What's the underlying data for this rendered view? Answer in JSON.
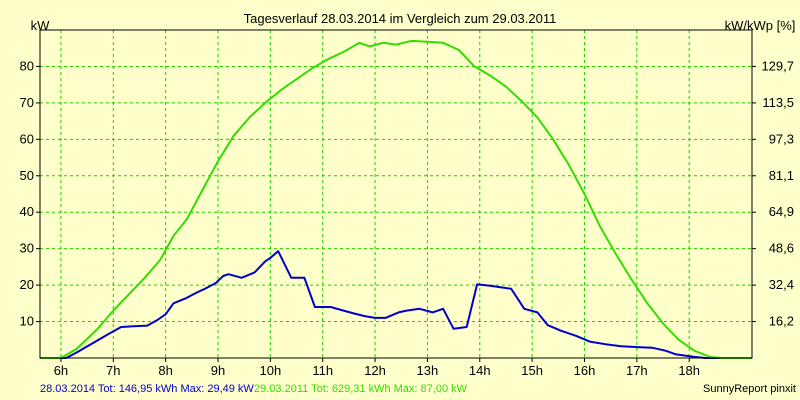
{
  "chart_data": {
    "type": "line",
    "title": "Tagesverlauf 28.03.2014 im Vergleich zum 29.03.2011",
    "ylabel_left": "kW",
    "ylabel_right": "kW/kWp [%]",
    "x_ticks": [
      "6h",
      "7h",
      "8h",
      "9h",
      "10h",
      "11h",
      "12h",
      "13h",
      "14h",
      "15h",
      "16h",
      "17h",
      "18h"
    ],
    "xlim": [
      5.6,
      19.2
    ],
    "ylim": [
      0,
      90
    ],
    "y_ticks": [
      10,
      20,
      30,
      40,
      50,
      60,
      70,
      80
    ],
    "y_right_ticks": [
      "16,2",
      "32,4",
      "48,6",
      "64,9",
      "81,1",
      "97,3",
      "113,5",
      "129,7"
    ],
    "grid": true,
    "series": [
      {
        "name": "28.03.2014",
        "color": "#0000cc",
        "points": [
          [
            5.6,
            0
          ],
          [
            6.1,
            0
          ],
          [
            6.3,
            1.5
          ],
          [
            6.6,
            4
          ],
          [
            6.9,
            6.5
          ],
          [
            7.15,
            8.5
          ],
          [
            7.4,
            8.7
          ],
          [
            7.65,
            8.9
          ],
          [
            7.85,
            10.5
          ],
          [
            8.0,
            12
          ],
          [
            8.15,
            15
          ],
          [
            8.4,
            16.5
          ],
          [
            8.6,
            18
          ],
          [
            8.75,
            19
          ],
          [
            8.95,
            20.5
          ],
          [
            9.1,
            22.5
          ],
          [
            9.2,
            23
          ],
          [
            9.45,
            22
          ],
          [
            9.7,
            23.5
          ],
          [
            9.9,
            26.5
          ],
          [
            10.0,
            27.5
          ],
          [
            10.15,
            29.3
          ],
          [
            10.4,
            22
          ],
          [
            10.65,
            22
          ],
          [
            10.85,
            14
          ],
          [
            11.0,
            14
          ],
          [
            11.15,
            14
          ],
          [
            11.4,
            13
          ],
          [
            11.6,
            12.2
          ],
          [
            11.8,
            11.5
          ],
          [
            12.0,
            11
          ],
          [
            12.2,
            11
          ],
          [
            12.45,
            12.5
          ],
          [
            12.6,
            13
          ],
          [
            12.85,
            13.5
          ],
          [
            13.1,
            12.5
          ],
          [
            13.3,
            13.5
          ],
          [
            13.5,
            8
          ],
          [
            13.75,
            8.5
          ],
          [
            13.95,
            20.2
          ],
          [
            14.2,
            19.8
          ],
          [
            14.6,
            19
          ],
          [
            14.85,
            13.5
          ],
          [
            15.1,
            12.5
          ],
          [
            15.3,
            9
          ],
          [
            15.55,
            7.5
          ],
          [
            15.85,
            6
          ],
          [
            16.1,
            4.5
          ],
          [
            16.4,
            3.8
          ],
          [
            16.7,
            3.2
          ],
          [
            17.0,
            3
          ],
          [
            17.3,
            2.8
          ],
          [
            17.55,
            2
          ],
          [
            17.75,
            1
          ],
          [
            18.1,
            0.3
          ],
          [
            18.3,
            0
          ],
          [
            19.2,
            0
          ]
        ]
      },
      {
        "name": "29.03.2011",
        "color": "#33dd00",
        "points": [
          [
            5.6,
            0
          ],
          [
            6.0,
            0
          ],
          [
            6.3,
            2.5
          ],
          [
            6.7,
            8
          ],
          [
            7.0,
            13
          ],
          [
            7.3,
            17.5
          ],
          [
            7.6,
            22
          ],
          [
            7.9,
            27
          ],
          [
            8.15,
            33.5
          ],
          [
            8.4,
            38
          ],
          [
            8.7,
            46
          ],
          [
            9.0,
            54
          ],
          [
            9.3,
            61
          ],
          [
            9.6,
            66
          ],
          [
            9.9,
            70
          ],
          [
            10.2,
            73.5
          ],
          [
            10.5,
            76.5
          ],
          [
            10.8,
            79.5
          ],
          [
            11.1,
            82
          ],
          [
            11.4,
            84
          ],
          [
            11.7,
            86.5
          ],
          [
            11.9,
            85.5
          ],
          [
            12.15,
            86.5
          ],
          [
            12.4,
            86
          ],
          [
            12.7,
            87
          ],
          [
            13.0,
            86.8
          ],
          [
            13.3,
            86.5
          ],
          [
            13.6,
            84.5
          ],
          [
            13.9,
            80
          ],
          [
            14.2,
            77.5
          ],
          [
            14.5,
            74.5
          ],
          [
            14.8,
            70.5
          ],
          [
            15.1,
            66
          ],
          [
            15.4,
            60
          ],
          [
            15.7,
            53
          ],
          [
            16.0,
            45
          ],
          [
            16.3,
            36
          ],
          [
            16.6,
            28.5
          ],
          [
            16.9,
            21.5
          ],
          [
            17.2,
            15
          ],
          [
            17.5,
            9.5
          ],
          [
            17.8,
            5
          ],
          [
            18.1,
            2
          ],
          [
            18.4,
            0.3
          ],
          [
            18.6,
            0
          ],
          [
            19.2,
            0
          ]
        ]
      }
    ]
  },
  "footer": {
    "series1_text": "28.03.2014 Tot: 146,95 kWh Max: 29,49 kW",
    "series2_text": "29.03.2011 Tot: 629,31 kWh Max: 87,00 kW",
    "credit": "SunnyReport pinxit"
  }
}
